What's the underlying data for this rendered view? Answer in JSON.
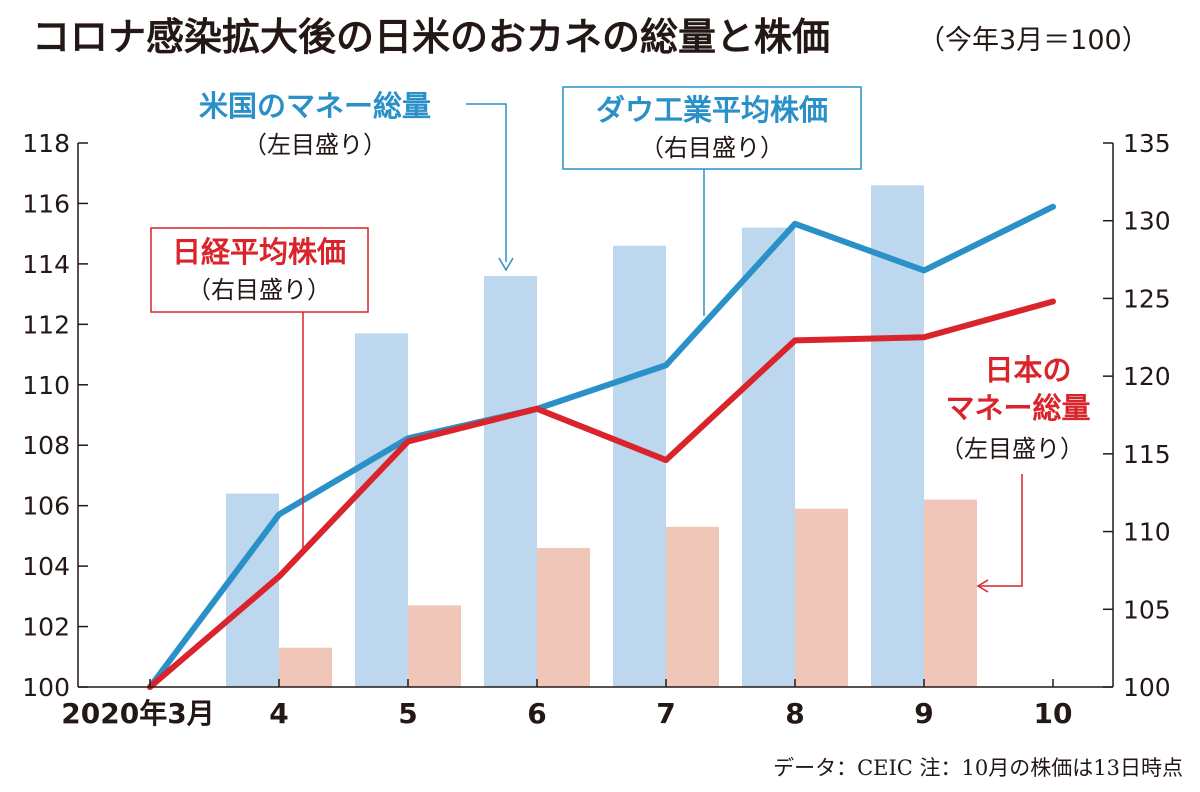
{
  "chart_data": {
    "type": "bar",
    "title": "コロナ感染拡大後の日米のおカネの総量と株価",
    "subtitle": "（今年3月＝100）",
    "categories": [
      "2020年3月",
      "4",
      "5",
      "6",
      "7",
      "8",
      "9",
      "10"
    ],
    "y_left": {
      "ticks": [
        "100",
        "102",
        "104",
        "106",
        "108",
        "110",
        "112",
        "114",
        "116",
        "118"
      ],
      "ylim": [
        100,
        118
      ]
    },
    "y_right": {
      "ticks": [
        "100",
        "105",
        "110",
        "115",
        "120",
        "125",
        "130",
        "135"
      ],
      "ylim": [
        100,
        135
      ]
    },
    "bar_series": [
      {
        "name": "米国のマネー総量",
        "axis": "left",
        "color": "#bdd7ee",
        "values": [
          null,
          106.4,
          111.7,
          113.6,
          114.6,
          115.2,
          116.6,
          null
        ]
      },
      {
        "name": "日本のマネー総量",
        "axis": "left",
        "color": "#f0c6b8",
        "values": [
          null,
          101.3,
          102.7,
          104.6,
          105.3,
          105.9,
          106.2,
          null
        ]
      }
    ],
    "line_series": [
      {
        "name": "ダウ工業平均株価",
        "axis": "right",
        "color": "#2a90c8",
        "values": [
          100,
          111.1,
          116.0,
          117.9,
          120.7,
          129.8,
          126.8,
          130.9
        ]
      },
      {
        "name": "日経平均株価",
        "axis": "right",
        "color": "#d9242b",
        "values": [
          100,
          107.1,
          115.8,
          117.9,
          114.6,
          122.3,
          122.5,
          124.8
        ]
      }
    ],
    "labels": {
      "us_money": {
        "name": "米国のマネー総量",
        "axis_note": "（左目盛り）"
      },
      "dow": {
        "name": "ダウ工業平均株価",
        "axis_note": "（右目盛り）"
      },
      "nikkei": {
        "name": "日経平均株価",
        "axis_note": "（右目盛り）"
      },
      "jp_money": {
        "name_line1": "日本の",
        "name_line2": "マネー総量",
        "axis_note": "（左目盛り）"
      }
    },
    "note": "データ：CEIC 注：10月の株価は13日時点"
  }
}
